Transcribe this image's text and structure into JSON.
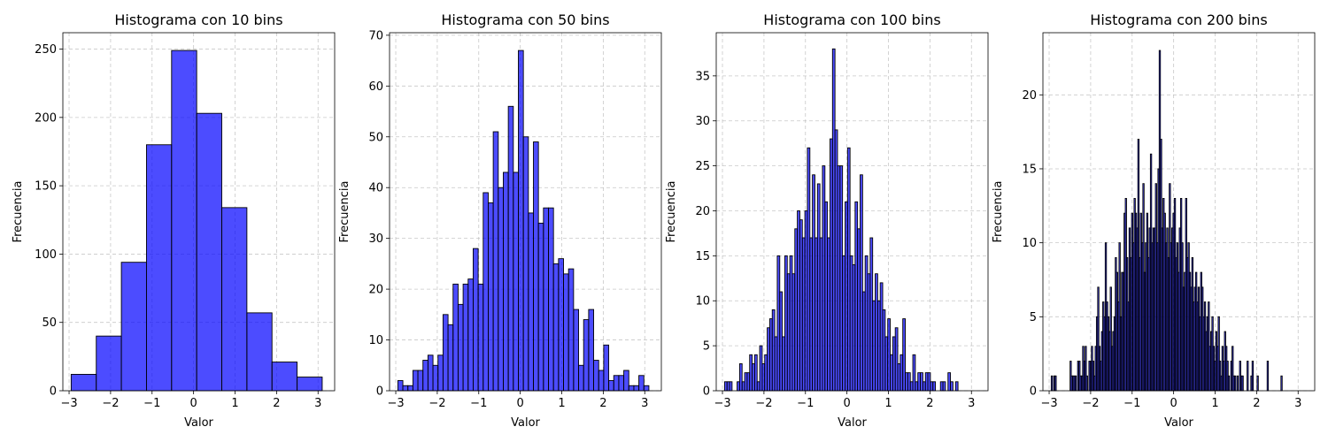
{
  "chart_data": [
    {
      "type": "bar",
      "title": "Histograma con 10 bins",
      "xlabel": "Valor",
      "ylabel": "Frecuencia",
      "xlim": [
        -3.15,
        3.4
      ],
      "ylim": [
        0,
        262
      ],
      "xticks": [
        -3,
        -2,
        -1,
        0,
        1,
        2,
        3
      ],
      "yticks": [
        0,
        50,
        100,
        150,
        200,
        250
      ],
      "grid": true,
      "bar_color": "#0000ff",
      "bar_alpha": 0.7,
      "edge_color": "#000000",
      "bin_start": -2.95,
      "bin_end": 3.1,
      "values": [
        12,
        40,
        94,
        180,
        249,
        203,
        134,
        57,
        21,
        10
      ]
    },
    {
      "type": "bar",
      "title": "Histograma con 50 bins",
      "xlabel": "Valor",
      "ylabel": "Frecuencia",
      "xlim": [
        -3.15,
        3.4
      ],
      "ylim": [
        0,
        70.5
      ],
      "xticks": [
        -3,
        -2,
        -1,
        0,
        1,
        2,
        3
      ],
      "yticks": [
        0,
        10,
        20,
        30,
        40,
        50,
        60,
        70
      ],
      "grid": true,
      "bar_color": "#0000ff",
      "bar_alpha": 0.7,
      "edge_color": "#000000",
      "bin_start": -2.95,
      "bin_end": 3.1,
      "values": [
        2,
        1,
        1,
        4,
        4,
        6,
        7,
        5,
        7,
        15,
        13,
        21,
        17,
        21,
        22,
        28,
        21,
        39,
        37,
        51,
        40,
        43,
        56,
        43,
        67,
        50,
        35,
        49,
        33,
        36,
        36,
        25,
        26,
        23,
        24,
        16,
        5,
        14,
        16,
        6,
        4,
        9,
        2,
        3,
        3,
        4,
        1,
        1,
        3,
        1
      ]
    },
    {
      "type": "bar",
      "title": "Histograma con 100 bins",
      "xlabel": "Valor",
      "ylabel": "Frecuencia",
      "xlim": [
        -3.15,
        3.4
      ],
      "ylim": [
        0,
        39.8
      ],
      "xticks": [
        -3,
        -2,
        -1,
        0,
        1,
        2,
        3
      ],
      "yticks": [
        0,
        5,
        10,
        15,
        20,
        25,
        30,
        35
      ],
      "grid": true,
      "bar_color": "#0000ff",
      "bar_alpha": 0.7,
      "edge_color": "#000000",
      "bin_start": -2.95,
      "bin_end": 3.1,
      "values": [
        1,
        1,
        1,
        0,
        0,
        1,
        3,
        1,
        2,
        2,
        4,
        3,
        4,
        1,
        5,
        3,
        4,
        7,
        8,
        9,
        6,
        15,
        11,
        6,
        15,
        13,
        15,
        13,
        18,
        20,
        19,
        17,
        20,
        27,
        17,
        24,
        17,
        23,
        17,
        25,
        21,
        17,
        28,
        38,
        29,
        25,
        25,
        15,
        21,
        27,
        15,
        14,
        21,
        18,
        24,
        11,
        15,
        13,
        17,
        10,
        13,
        10,
        12,
        9,
        6,
        8,
        4,
        6,
        7,
        3,
        4,
        8,
        2,
        2,
        1,
        4,
        1,
        2,
        2,
        1,
        2,
        2,
        1,
        1,
        0,
        0,
        1,
        1,
        0,
        2,
        1,
        0,
        1,
        0,
        0,
        0,
        0,
        0,
        0,
        0
      ]
    },
    {
      "type": "bar",
      "title": "Histograma con 200 bins",
      "xlabel": "Valor",
      "ylabel": "Frecuencia",
      "xlim": [
        -3.15,
        3.4
      ],
      "ylim": [
        0,
        24.2
      ],
      "xticks": [
        -3,
        -2,
        -1,
        0,
        1,
        2,
        3
      ],
      "yticks": [
        0,
        5,
        10,
        15,
        20
      ],
      "grid": true,
      "bar_color": "#0000ff",
      "bar_alpha": 0.7,
      "edge_color": "#000000",
      "bin_start": -2.95,
      "bin_end": 3.1,
      "values": [
        1,
        0,
        1,
        1,
        0,
        0,
        0,
        0,
        0,
        0,
        0,
        0,
        0,
        0,
        0,
        2,
        1,
        1,
        1,
        1,
        0,
        2,
        2,
        1,
        1,
        3,
        2,
        3,
        1,
        0,
        2,
        2,
        3,
        2,
        1,
        3,
        5,
        7,
        3,
        2,
        4,
        6,
        5,
        10,
        6,
        5,
        4,
        7,
        3,
        4,
        5,
        9,
        8,
        6,
        10,
        5,
        8,
        8,
        12,
        13,
        9,
        6,
        11,
        9,
        12,
        10,
        13,
        12,
        11,
        17,
        9,
        12,
        10,
        14,
        8,
        10,
        12,
        9,
        11,
        16,
        10,
        11,
        11,
        14,
        10,
        15,
        23,
        17,
        11,
        13,
        12,
        10,
        11,
        9,
        14,
        10,
        11,
        12,
        13,
        9,
        10,
        8,
        11,
        13,
        10,
        7,
        8,
        13,
        9,
        10,
        8,
        7,
        9,
        6,
        7,
        8,
        6,
        7,
        5,
        8,
        7,
        5,
        6,
        4,
        5,
        6,
        3,
        4,
        5,
        3,
        2,
        4,
        3,
        5,
        2,
        1,
        3,
        2,
        4,
        3,
        2,
        1,
        0,
        2,
        3,
        1,
        1,
        0,
        1,
        0,
        2,
        1,
        1,
        0,
        0,
        0,
        2,
        0,
        0,
        1,
        2,
        0,
        0,
        0,
        1,
        0,
        0,
        0,
        0,
        0,
        0,
        0,
        2,
        0,
        0,
        0,
        0,
        0,
        0,
        0,
        0,
        0,
        0,
        1,
        0,
        0,
        0,
        0,
        0,
        0,
        0,
        0,
        0,
        0,
        0,
        0,
        0,
        0,
        0,
        0
      ]
    }
  ]
}
